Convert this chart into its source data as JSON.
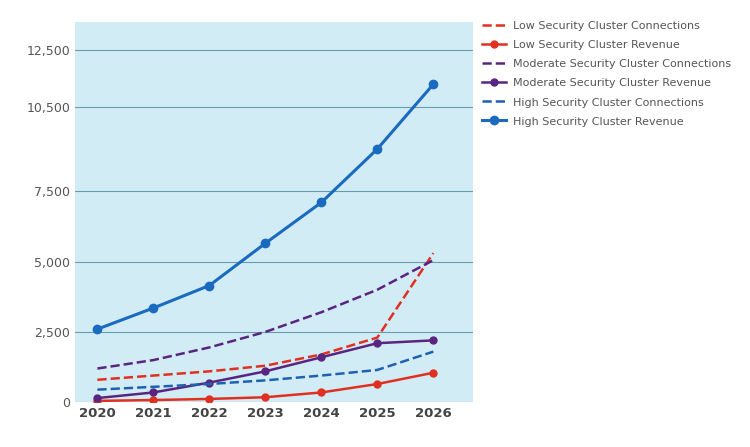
{
  "years": [
    2020,
    2021,
    2022,
    2023,
    2024,
    2025,
    2026
  ],
  "low_security_connections": [
    800,
    950,
    1100,
    1300,
    1700,
    2300,
    5300
  ],
  "low_security_revenue": [
    50,
    80,
    120,
    180,
    350,
    650,
    1050
  ],
  "moderate_security_connections": [
    1200,
    1500,
    1950,
    2500,
    3200,
    4000,
    5050
  ],
  "moderate_security_revenue": [
    150,
    350,
    700,
    1100,
    1600,
    2100,
    2200
  ],
  "high_security_connections": [
    450,
    550,
    650,
    780,
    950,
    1150,
    1800
  ],
  "high_security_revenue": [
    2600,
    3350,
    4150,
    5650,
    7100,
    9000,
    11300
  ],
  "low_conn_color": "#e03020",
  "low_rev_color": "#e03020",
  "mod_conn_color": "#5a2580",
  "mod_rev_color": "#5a2580",
  "high_conn_color": "#2060b0",
  "high_rev_color": "#1a6abf",
  "bg_color": "#d2ecf5",
  "grid_color": "#4a8a9a",
  "yticks": [
    0,
    2500,
    5000,
    7500,
    10500,
    12500
  ],
  "ylim": [
    0,
    13500
  ],
  "xlim": [
    2019.6,
    2026.7
  ],
  "legend_labels": [
    "Low Security Cluster Connections",
    "Low Security Cluster Revenue",
    "Moderate Security Cluster Connections",
    "Moderate Security Cluster Revenue",
    "High Security Cluster Connections",
    "High Security Cluster Revenue"
  ]
}
